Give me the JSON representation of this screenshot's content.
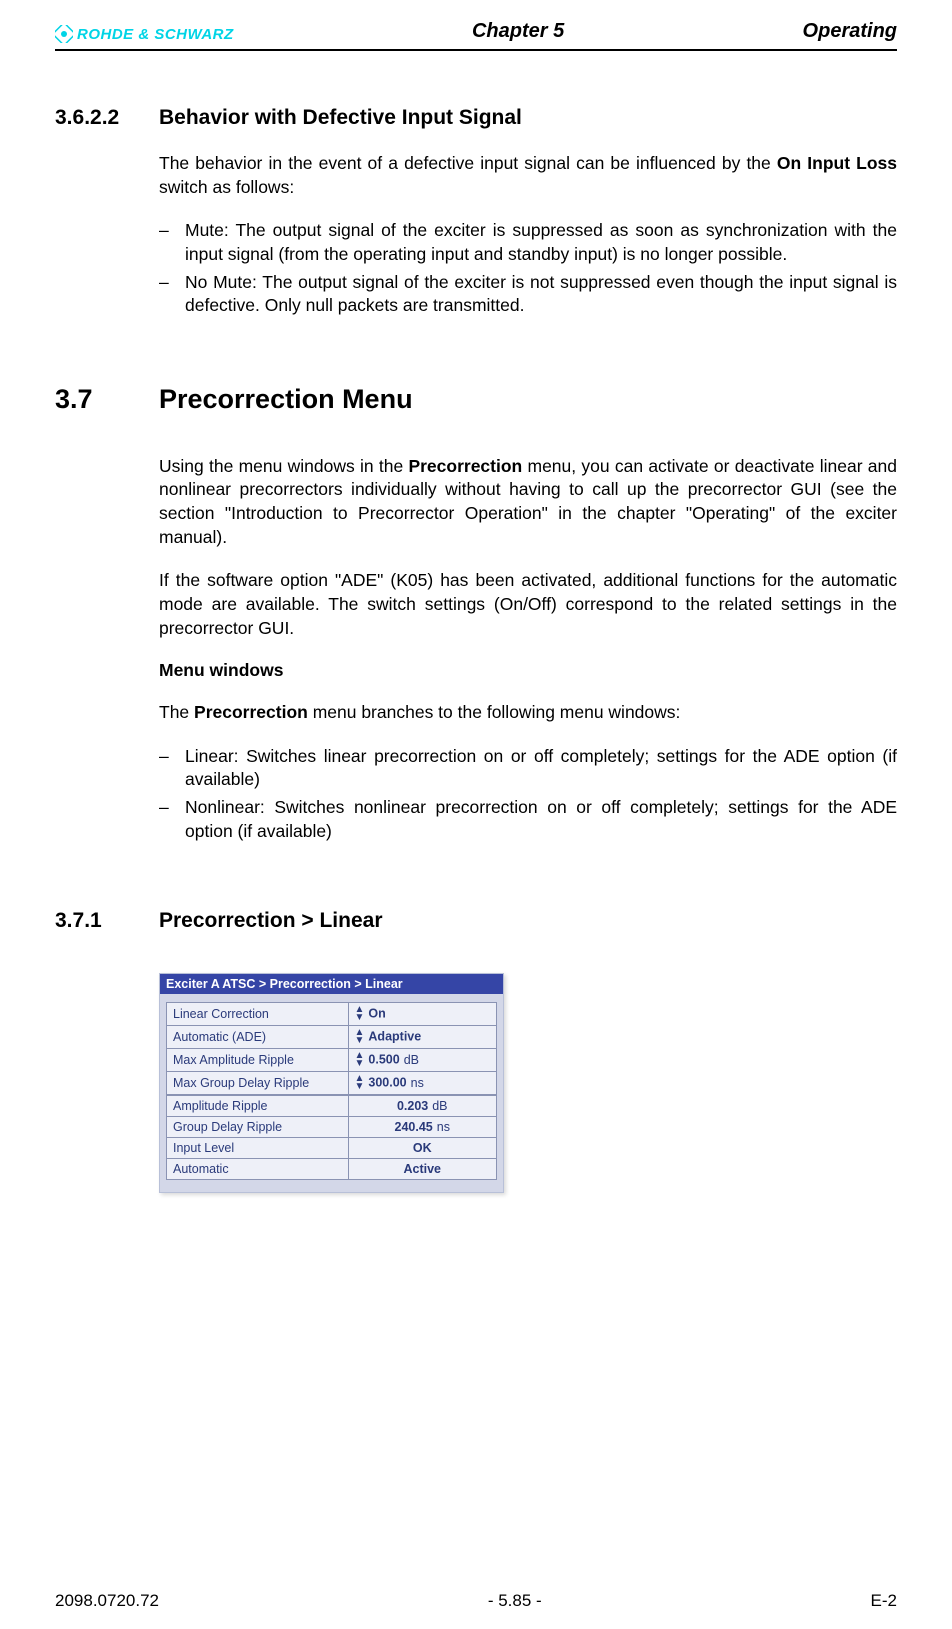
{
  "header": {
    "logo_text": "ROHDE & SCHWARZ",
    "chapter": "Chapter 5",
    "section": "Operating"
  },
  "s1": {
    "num": "3.6.2.2",
    "title": "Behavior with Defective Input Signal",
    "p1_a": "The behavior in the event of a defective input signal can be influenced by the ",
    "p1_b": "On Input Loss",
    "p1_c": " switch as follows:",
    "li1_a": "Mute",
    "li1_b": ": The output signal of the exciter is suppressed as soon as synchronization with the input signal (from the operating input ",
    "li1_c": "and",
    "li1_d": " standby input) is no longer possible.",
    "li2_a": "No Mute",
    "li2_b": ": The output signal of the exciter is not suppressed even though the input signal is defective. Only null packets are transmitted."
  },
  "s2": {
    "num": "3.7",
    "title": "Precorrection Menu",
    "p1_a": "Using the menu windows in the ",
    "p1_b": "Precorrection",
    "p1_c": " menu, you can activate or deactivate linear and nonlinear precorrectors individually without having to call up the precorrector GUI (see the section \"Introduction to Precorrector Operation\" in the chapter \"Operating\" of the exciter manual).",
    "p2": "If the software option \"ADE\" (K05) has been activated, additional functions for the automatic mode are available. The switch settings (On/Off) correspond to the related settings in the precorrector GUI.",
    "sub": "Menu windows",
    "p3_a": "The ",
    "p3_b": "Precorrection",
    "p3_c": " menu branches to the following menu windows:",
    "li1": "Linear: Switches linear precorrection on or off completely; settings for the ADE option (if available)",
    "li2": "Nonlinear: Switches nonlinear precorrection on or off completely; settings for the ADE option (if available)"
  },
  "s3": {
    "num": "3.7.1",
    "title": "Precorrection > Linear",
    "menu": {
      "titlebar": "Exciter A ATSC  > Precorrection > Linear",
      "rows": [
        {
          "label": "Linear Correction",
          "value": "On",
          "unit": "",
          "spinner": true,
          "readonly": false
        },
        {
          "label": "Automatic (ADE)",
          "value": "Adaptive",
          "unit": "",
          "spinner": true,
          "readonly": false
        },
        {
          "label": "Max Amplitude Ripple",
          "value": "0.500",
          "unit": "dB",
          "spinner": true,
          "readonly": false
        },
        {
          "label": "Max Group Delay Ripple",
          "value": "300.00",
          "unit": "ns",
          "spinner": true,
          "readonly": false
        },
        {
          "label": "Amplitude Ripple",
          "value": "0.203",
          "unit": "dB",
          "spinner": false,
          "readonly": true,
          "group": true
        },
        {
          "label": "Group Delay Ripple",
          "value": "240.45",
          "unit": "ns",
          "spinner": false,
          "readonly": true
        },
        {
          "label": "Input Level",
          "value": "OK",
          "unit": "",
          "spinner": false,
          "readonly": true
        },
        {
          "label": "Automatic",
          "value": "Active",
          "unit": "",
          "spinner": false,
          "readonly": true
        }
      ],
      "colors": {
        "titlebar_bg": "#3545a6",
        "titlebar_fg": "#ffffff",
        "panel_bg": "#d3d7e8",
        "cell_bg": "#eef0f8",
        "cell_fg": "#2a3a7a",
        "border": "#8a93b3"
      }
    }
  },
  "footer": {
    "left": "2098.0720.72",
    "center": "- 5.85 -",
    "right": "E-2"
  }
}
